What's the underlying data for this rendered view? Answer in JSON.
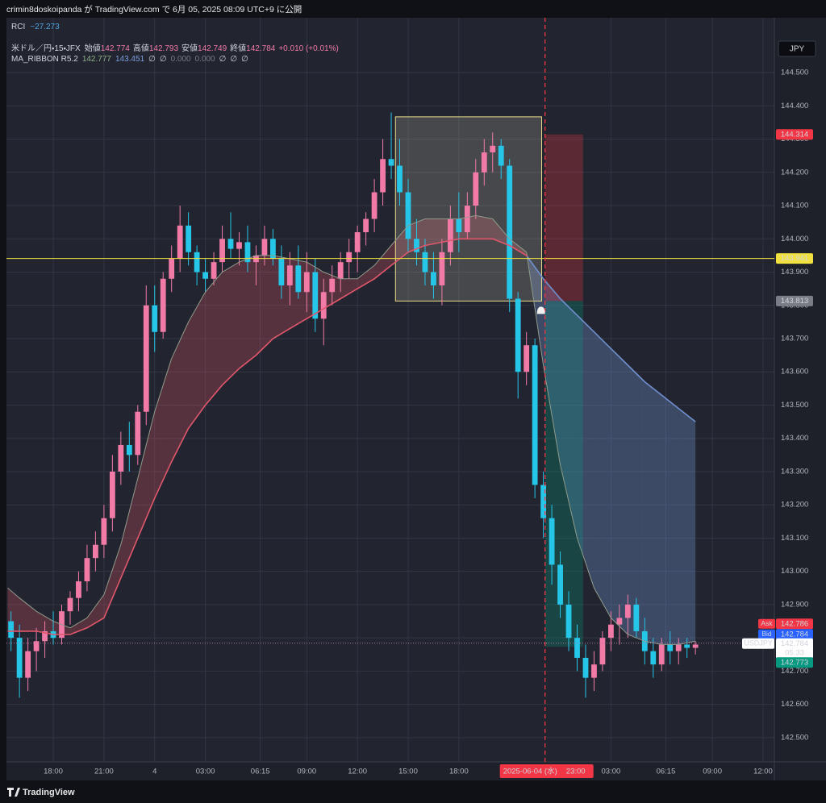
{
  "header": {
    "publisher": "crimin8doskoipanda が TradingView.com で 6月 05, 2025 08:09 UTC+9 に公開",
    "brand": "TradingView"
  },
  "chart_data": {
    "type": "candlestick",
    "indicator": {
      "name": "RCI",
      "value": "−27.273"
    },
    "symbol_legend": "米ドル／円・15・JFX",
    "ohlc_legend": [
      {
        "label": "始値",
        "value": 142.774
      },
      {
        "label": "高値",
        "value": 142.793
      },
      {
        "label": "安値",
        "value": 142.749
      },
      {
        "label": "終値",
        "value": 142.784
      }
    ],
    "change": "+0.010 (+0.01%)",
    "ribbon_legend": {
      "name": "MA_RIBBON R5.2",
      "values": [
        142.777,
        143.451
      ],
      "items": [
        "∅",
        "∅",
        "0.000",
        "0.000",
        "∅",
        "∅",
        "∅"
      ]
    },
    "currency": "JPY",
    "up_color": "#f17aa6",
    "down_color": "#26c6e8",
    "x": [
      15.5,
      16,
      16.5,
      17,
      17.5,
      18,
      18.5,
      19,
      19.5,
      20,
      20.5,
      21,
      21.5,
      22,
      22.5,
      23,
      23.5,
      24,
      24.5,
      25,
      25.5,
      26,
      26.5,
      27,
      27.5,
      28,
      28.5,
      29,
      29.5,
      30,
      30.5,
      31,
      31.5,
      32,
      32.5,
      33,
      33.5,
      34,
      34.5,
      35,
      35.5,
      36,
      36.5,
      37,
      37.5,
      38,
      38.5,
      39,
      39.5,
      40,
      40.5,
      41,
      41.5,
      42,
      42.5,
      43,
      43.5,
      44,
      44.5,
      45,
      45.5,
      46,
      46.5,
      47,
      47.5,
      48,
      48.5,
      49,
      49.5,
      50,
      50.5,
      51,
      51.5,
      52,
      52.5,
      53,
      53.5,
      54,
      54.5,
      55,
      55.5,
      56
    ],
    "open": [
      142.85,
      142.8,
      142.68,
      142.76,
      142.79,
      142.82,
      142.8,
      142.88,
      142.92,
      142.97,
      143.04,
      143.08,
      143.16,
      143.3,
      143.38,
      143.35,
      143.48,
      143.8,
      143.72,
      143.88,
      143.94,
      144.04,
      143.96,
      143.9,
      143.88,
      143.93,
      144.0,
      143.97,
      143.99,
      143.93,
      143.95,
      144.0,
      143.94,
      143.86,
      143.92,
      143.84,
      143.9,
      143.76,
      143.84,
      143.88,
      143.93,
      143.96,
      144.02,
      144.06,
      144.14,
      144.24,
      144.22,
      144.14,
      144.0,
      143.96,
      143.9,
      143.86,
      143.96,
      144.06,
      144.02,
      144.1,
      144.2,
      144.26,
      144.28,
      144.22,
      143.82,
      143.6,
      143.68,
      143.26,
      143.16,
      143.02,
      142.9,
      142.8,
      142.74,
      142.68,
      142.72,
      142.8,
      142.84,
      142.86,
      142.9,
      142.82,
      142.76,
      142.72,
      142.78,
      142.76,
      142.78,
      142.77
    ],
    "high": [
      142.88,
      142.84,
      142.8,
      142.83,
      142.85,
      142.88,
      142.9,
      142.94,
      143.0,
      143.08,
      143.12,
      143.2,
      143.35,
      143.42,
      143.45,
      143.5,
      143.86,
      143.86,
      143.9,
      143.98,
      144.1,
      144.08,
      143.98,
      143.94,
      143.96,
      144.04,
      144.08,
      144.02,
      144.04,
      143.98,
      144.04,
      144.03,
      143.98,
      143.96,
      143.98,
      143.96,
      143.94,
      143.88,
      143.92,
      143.96,
      144.0,
      144.04,
      144.08,
      144.18,
      144.3,
      144.38,
      144.3,
      144.18,
      144.06,
      144.0,
      143.96,
      144.0,
      144.1,
      144.14,
      144.14,
      144.24,
      144.3,
      144.32,
      144.3,
      144.24,
      143.84,
      143.72,
      143.7,
      143.3,
      143.2,
      143.06,
      142.94,
      142.84,
      142.78,
      142.76,
      142.82,
      142.88,
      142.9,
      142.93,
      142.92,
      142.86,
      142.8,
      142.8,
      142.82,
      142.8,
      142.8,
      142.79
    ],
    "low": [
      142.76,
      142.62,
      142.64,
      142.7,
      142.74,
      142.78,
      142.78,
      142.84,
      142.88,
      142.94,
      143.0,
      143.04,
      143.12,
      143.26,
      143.3,
      143.32,
      143.44,
      143.66,
      143.7,
      143.84,
      143.9,
      143.92,
      143.86,
      143.84,
      143.86,
      143.9,
      143.94,
      143.92,
      143.9,
      143.86,
      143.92,
      143.92,
      143.82,
      143.8,
      143.82,
      143.78,
      143.72,
      143.68,
      143.8,
      143.84,
      143.88,
      143.9,
      143.98,
      144.02,
      144.1,
      144.18,
      144.1,
      143.96,
      143.92,
      143.86,
      143.82,
      143.8,
      143.92,
      143.96,
      144.0,
      144.06,
      144.16,
      144.2,
      144.18,
      143.78,
      143.52,
      143.56,
      143.22,
      143.1,
      142.96,
      142.86,
      142.76,
      142.7,
      142.62,
      142.64,
      142.7,
      142.76,
      142.78,
      142.8,
      142.8,
      142.72,
      142.68,
      142.7,
      142.72,
      142.72,
      142.74,
      142.75
    ],
    "close": [
      142.8,
      142.68,
      142.76,
      142.79,
      142.82,
      142.8,
      142.88,
      142.92,
      142.97,
      143.04,
      143.08,
      143.16,
      143.3,
      143.38,
      143.35,
      143.48,
      143.8,
      143.72,
      143.88,
      143.94,
      144.04,
      143.96,
      143.9,
      143.88,
      143.93,
      144.0,
      143.97,
      143.99,
      143.93,
      143.95,
      144.0,
      143.94,
      143.86,
      143.92,
      143.84,
      143.9,
      143.76,
      143.84,
      143.88,
      143.93,
      143.96,
      144.02,
      144.06,
      144.14,
      144.24,
      144.22,
      144.14,
      144.0,
      143.96,
      143.9,
      143.86,
      143.96,
      144.06,
      144.02,
      144.1,
      144.2,
      144.26,
      144.28,
      144.22,
      143.82,
      143.6,
      143.68,
      143.26,
      143.16,
      143.02,
      142.9,
      142.8,
      142.74,
      142.68,
      142.72,
      142.8,
      142.84,
      142.86,
      142.9,
      142.82,
      142.76,
      142.72,
      142.78,
      142.76,
      142.78,
      142.77,
      142.78
    ],
    "ribbon": [
      {
        "color": "#8f9a8a",
        "x": [
          15.3,
          16,
          17,
          18,
          19,
          20,
          21,
          22,
          23,
          24,
          25,
          26,
          27,
          28,
          29,
          30,
          31,
          32,
          33,
          34,
          35,
          36,
          37,
          38,
          39,
          40,
          41,
          42,
          43,
          44,
          45,
          46,
          47,
          48,
          49,
          50,
          51,
          52,
          53,
          54,
          55,
          56
        ],
        "values": [
          142.95,
          142.92,
          142.88,
          142.85,
          142.83,
          142.86,
          142.93,
          143.08,
          143.28,
          143.48,
          143.64,
          143.75,
          143.84,
          143.9,
          143.93,
          143.95,
          143.95,
          143.94,
          143.93,
          143.9,
          143.88,
          143.88,
          143.92,
          143.98,
          144.04,
          144.06,
          144.06,
          144.06,
          144.07,
          144.06,
          144.0,
          143.96,
          143.62,
          143.32,
          143.1,
          142.95,
          142.86,
          142.81,
          142.79,
          142.78,
          142.78,
          142.79
        ]
      },
      {
        "color": "#e0566b",
        "color_below": "#6f8fcf",
        "x": [
          15.3,
          16,
          17,
          18,
          19,
          20,
          21,
          22,
          23,
          24,
          25,
          26,
          27,
          28,
          29,
          30,
          31,
          32,
          33,
          34,
          35,
          36,
          37,
          38,
          39,
          40,
          41,
          42,
          43,
          44,
          45,
          46,
          47,
          48,
          49,
          50,
          51,
          52,
          53,
          54,
          55,
          56
        ],
        "values": [
          142.82,
          142.82,
          142.82,
          142.81,
          142.81,
          142.83,
          142.86,
          142.98,
          143.1,
          143.22,
          143.33,
          143.43,
          143.5,
          143.56,
          143.61,
          143.65,
          143.7,
          143.73,
          143.76,
          143.79,
          143.82,
          143.85,
          143.88,
          143.92,
          143.96,
          143.98,
          143.99,
          144.0,
          144.0,
          144.0,
          143.98,
          143.95,
          143.88,
          143.82,
          143.77,
          143.72,
          143.67,
          143.62,
          143.57,
          143.53,
          143.49,
          143.45
        ]
      }
    ],
    "box": {
      "x": [
        38.25,
        46.9
      ],
      "y": [
        143.813,
        144.367
      ],
      "color": "#e8dc8a"
    },
    "hline": {
      "value": 143.941,
      "color": "#f0e040"
    },
    "position": {
      "x": [
        47.1,
        49.35
      ],
      "stop": 144.314,
      "entry": 143.813,
      "target": 142.773
    },
    "vline": {
      "x": 47.1,
      "color": "#f23645"
    },
    "crosshair": {
      "x": 47.1,
      "date": "2025-06-04 (水)",
      "time": "23:00"
    },
    "ask": {
      "label": "Ask",
      "value": 142.786
    },
    "bid": {
      "label": "Bid",
      "value": 142.784
    },
    "last": {
      "symbol": "USDJPY",
      "value": 142.784,
      "countdown": "05:33"
    },
    "xlim": [
      15.23,
      60.67
    ],
    "ylim": [
      142.427,
      144.665
    ],
    "xticks": [
      {
        "value": 18,
        "label": "18:00"
      },
      {
        "value": 21,
        "label": "21:00"
      },
      {
        "value": 24,
        "label": "4"
      },
      {
        "value": 27,
        "label": "03:00"
      },
      {
        "value": 30.25,
        "label": "06:15"
      },
      {
        "value": 33,
        "label": "09:00"
      },
      {
        "value": 36,
        "label": "12:00"
      },
      {
        "value": 39,
        "label": "15:00"
      },
      {
        "value": 42,
        "label": "18:00"
      },
      {
        "value": 51,
        "label": "03:00"
      },
      {
        "value": 54.25,
        "label": "06:15"
      },
      {
        "value": 57,
        "label": "09:00"
      },
      {
        "value": 60,
        "label": "12:00"
      }
    ],
    "yticks": [
      {
        "value": 142.5,
        "label": "142.500"
      },
      {
        "value": 142.6,
        "label": "142.600"
      },
      {
        "value": 142.7,
        "label": "142.700"
      },
      {
        "value": 142.8,
        "label": "142.800"
      },
      {
        "value": 142.9,
        "label": "142.900"
      },
      {
        "value": 143.0,
        "label": "143.000"
      },
      {
        "value": 143.1,
        "label": "143.100"
      },
      {
        "value": 143.2,
        "label": "143.200"
      },
      {
        "value": 143.3,
        "label": "143.300"
      },
      {
        "value": 143.4,
        "label": "143.400"
      },
      {
        "value": 143.5,
        "label": "143.500"
      },
      {
        "value": 143.6,
        "label": "143.600"
      },
      {
        "value": 143.7,
        "label": "143.700"
      },
      {
        "value": 143.8,
        "label": "143.800"
      },
      {
        "value": 143.9,
        "label": "143.900"
      },
      {
        "value": 144.0,
        "label": "144.000"
      },
      {
        "value": 144.1,
        "label": "144.100"
      },
      {
        "value": 144.2,
        "label": "144.200"
      },
      {
        "value": 144.3,
        "label": "144.300"
      },
      {
        "value": 144.4,
        "label": "144.400"
      },
      {
        "value": 144.5,
        "label": "144.500"
      }
    ],
    "grid": true
  }
}
